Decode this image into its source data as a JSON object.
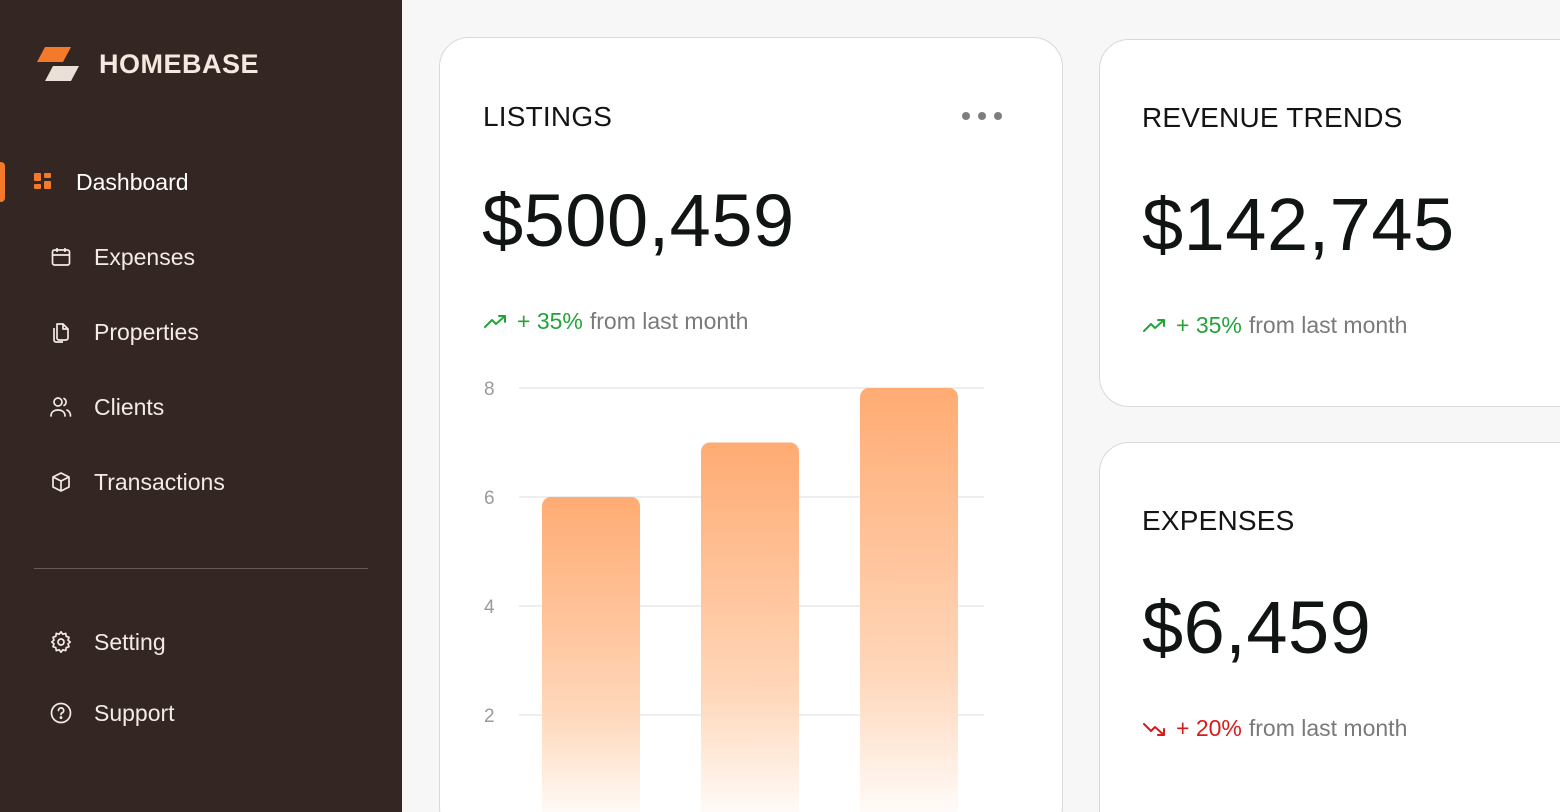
{
  "brand": {
    "name": "HOMEBASE",
    "accent": "#f47a2b"
  },
  "sidebar": {
    "items": [
      {
        "label": "Dashboard",
        "icon": "grid-icon",
        "active": true
      },
      {
        "label": "Expenses",
        "icon": "calendar-icon",
        "active": false
      },
      {
        "label": "Properties",
        "icon": "documents-icon",
        "active": false
      },
      {
        "label": "Clients",
        "icon": "users-icon",
        "active": false
      },
      {
        "label": "Transactions",
        "icon": "box-icon",
        "active": false
      }
    ],
    "bottom_items": [
      {
        "label": "Setting",
        "icon": "gear-icon"
      },
      {
        "label": "Support",
        "icon": "help-circle-icon"
      }
    ]
  },
  "cards": {
    "listings": {
      "title": "LISTINGS",
      "value": "$500,459",
      "trend": {
        "direction": "up",
        "pct": "+ 35%",
        "text": "from last month"
      }
    },
    "revenue": {
      "title": "REVENUE TRENDS",
      "value": "$142,745",
      "trend": {
        "direction": "up",
        "pct": "+ 35%",
        "text": "from last month"
      }
    },
    "expenses": {
      "title": "EXPENSES",
      "value": "$6,459",
      "trend": {
        "direction": "down",
        "pct": "+ 20%",
        "text": "from last month"
      }
    }
  },
  "colors": {
    "up": "#24a33a",
    "down": "#d51b1b",
    "bar_top": "#ffae74",
    "bar_bottom": "#ffffff"
  },
  "chart_data": {
    "type": "bar",
    "categories": [
      "",
      "",
      ""
    ],
    "values": [
      6,
      7,
      8
    ],
    "yticks": [
      "8",
      "6",
      "4",
      "2"
    ],
    "ylim": [
      0,
      8
    ],
    "grid": true,
    "title": "",
    "xlabel": "",
    "ylabel": ""
  }
}
